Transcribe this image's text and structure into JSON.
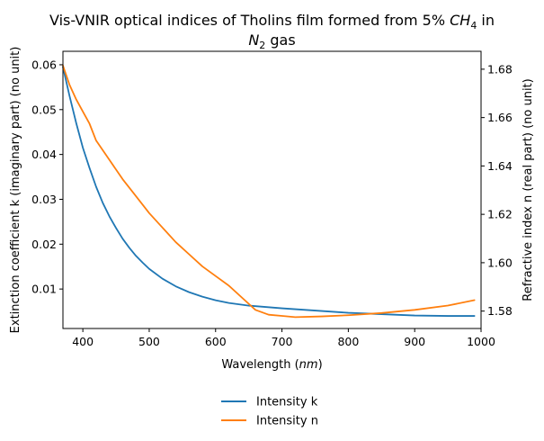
{
  "chart_data": {
    "type": "line",
    "title": {
      "line1": "Vis-VNIR optical indices of Tholins film formed from 5%",
      "line1_math": "CH",
      "line1_sub": "4",
      "line1_end": "in",
      "line2_math": "N",
      "line2_sub": "2",
      "line2_end": "gas"
    },
    "xlabel": {
      "text": "Wavelength (",
      "math": "nm",
      "end": ")"
    },
    "ylabel_left": "Extinction coefficient k (imaginary part) (no unit)",
    "ylabel_right": "Refractive index n (real part) (no unit)",
    "xlim": [
      370,
      1000
    ],
    "ylim_left": [
      0.0012,
      0.063
    ],
    "ylim_right": [
      1.5728,
      1.6874
    ],
    "x_ticks": [
      400,
      500,
      600,
      700,
      800,
      900,
      1000
    ],
    "y_left_ticks": [
      0.01,
      0.02,
      0.03,
      0.04,
      0.05,
      0.06
    ],
    "y_right_ticks": [
      1.58,
      1.6,
      1.62,
      1.64,
      1.66,
      1.68
    ],
    "grid": false,
    "legend": {
      "placement": "below chart"
    },
    "series": [
      {
        "name": "Intensity k",
        "axis": "left",
        "color": "#1f77b4",
        "x": [
          370,
          380,
          390,
          400,
          410,
          420,
          430,
          440,
          450,
          460,
          470,
          480,
          490,
          500,
          520,
          540,
          560,
          580,
          600,
          620,
          650,
          700,
          750,
          800,
          850,
          900,
          950,
          990
        ],
        "y": [
          0.0595,
          0.053,
          0.047,
          0.0415,
          0.037,
          0.0328,
          0.0292,
          0.0262,
          0.0236,
          0.0212,
          0.0192,
          0.0174,
          0.0159,
          0.0145,
          0.0123,
          0.0106,
          0.0093,
          0.0083,
          0.0075,
          0.0069,
          0.0063,
          0.0057,
          0.0052,
          0.0047,
          0.0044,
          0.0041,
          0.004,
          0.004
        ]
      },
      {
        "name": "Intensity n",
        "axis": "right",
        "color": "#ff7f0e",
        "x": [
          370,
          380,
          390,
          400,
          410,
          420,
          440,
          460,
          480,
          500,
          520,
          540,
          560,
          580,
          600,
          620,
          640,
          660,
          680,
          700,
          720,
          760,
          800,
          850,
          900,
          950,
          990
        ],
        "y": [
          1.6815,
          1.6735,
          1.6675,
          1.6625,
          1.6575,
          1.6505,
          1.6425,
          1.6345,
          1.6275,
          1.6205,
          1.6145,
          1.6085,
          1.6035,
          1.5985,
          1.5945,
          1.5905,
          1.5855,
          1.5805,
          1.5785,
          1.578,
          1.5775,
          1.5778,
          1.5783,
          1.5792,
          1.5805,
          1.5823,
          1.5845
        ]
      }
    ]
  }
}
